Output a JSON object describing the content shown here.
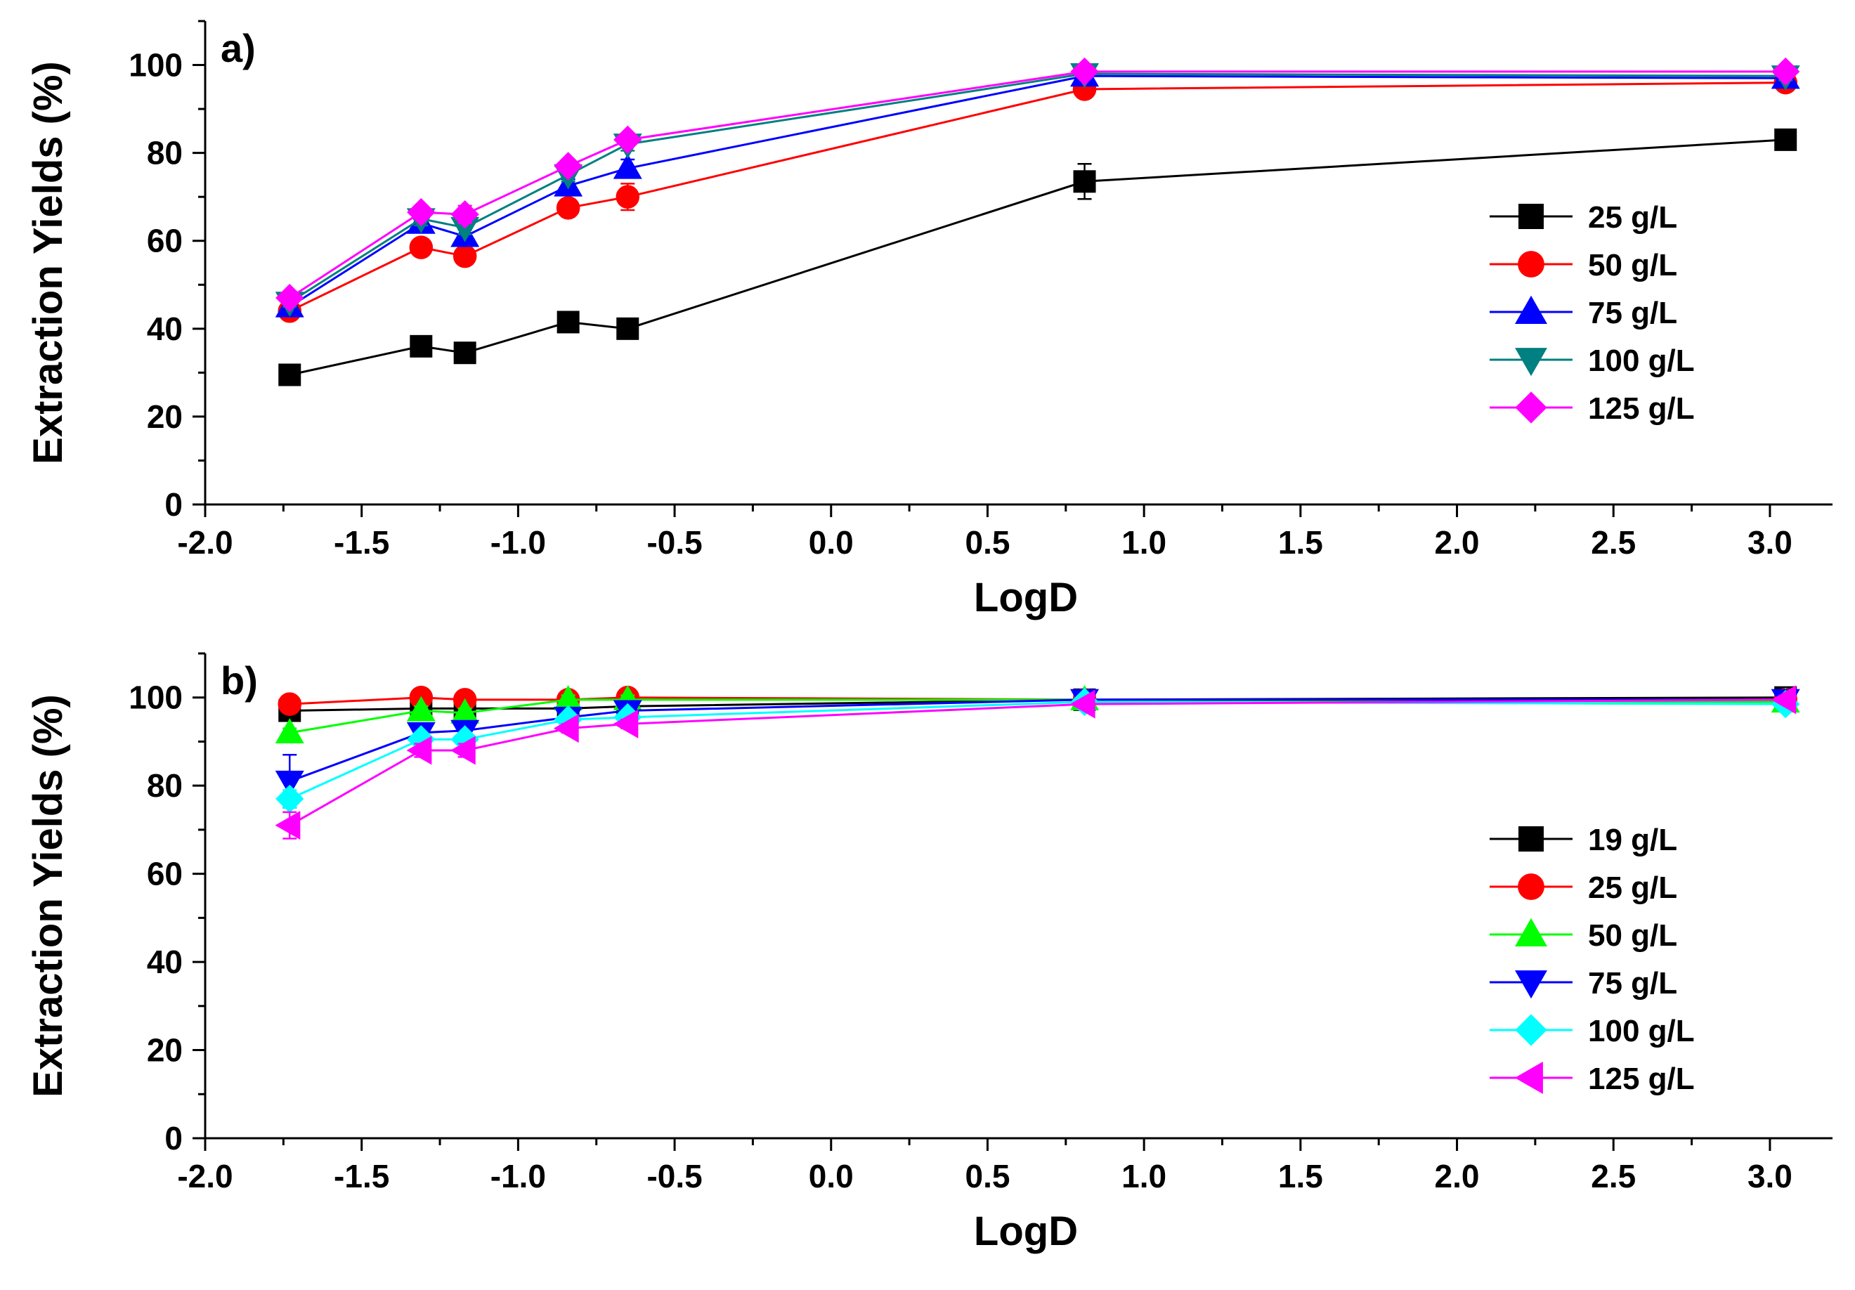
{
  "chart_data": [
    {
      "type": "line",
      "panel_label": "a)",
      "xlabel": "LogD",
      "ylabel": "Extraction Yields (%)",
      "xlim": [
        -2.0,
        3.2
      ],
      "ylim": [
        0,
        110
      ],
      "xticks": [
        "-2.0",
        "-1.5",
        "-1.0",
        "-0.5",
        "0.0",
        "0.5",
        "1.0",
        "1.5",
        "2.0",
        "2.5",
        "3.0"
      ],
      "yticks": [
        "0",
        "20",
        "40",
        "60",
        "80",
        "100"
      ],
      "legend_position": "center-right",
      "grid": false,
      "x": [
        -1.73,
        -1.31,
        -1.17,
        -0.84,
        -0.65,
        0.81,
        3.05
      ],
      "series": [
        {
          "name": "25 g/L",
          "color": "#000000",
          "marker": "square",
          "values": [
            29.5,
            36,
            34.5,
            41.5,
            40,
            73.5,
            83
          ],
          "errors": [
            1,
            1,
            1,
            1,
            1,
            4,
            1
          ]
        },
        {
          "name": "50 g/L",
          "color": "#ff0000",
          "marker": "circle",
          "values": [
            44,
            58.5,
            56.5,
            67.5,
            70,
            94.5,
            96
          ],
          "errors": [
            1,
            1.5,
            1.5,
            2,
            3,
            1,
            1
          ]
        },
        {
          "name": "75 g/L",
          "color": "#0000ff",
          "marker": "triangle-up",
          "values": [
            45,
            64,
            61,
            72.5,
            76.5,
            97.5,
            97
          ],
          "errors": [
            1,
            1.5,
            1.5,
            1.5,
            2,
            1,
            1
          ]
        },
        {
          "name": "100 g/L",
          "color": "#008080",
          "marker": "triangle-down",
          "values": [
            46,
            65,
            63,
            75,
            82,
            98,
            97.5
          ],
          "errors": [
            1,
            1.5,
            1.5,
            1.5,
            1.5,
            1,
            1
          ]
        },
        {
          "name": "125 g/L",
          "color": "#ff00ff",
          "marker": "diamond",
          "values": [
            47,
            66.5,
            66,
            77,
            83,
            98.5,
            98.5
          ],
          "errors": [
            1,
            1.5,
            2,
            1.5,
            1.5,
            1,
            1
          ]
        }
      ]
    },
    {
      "type": "line",
      "panel_label": "b)",
      "xlabel": "LogD",
      "ylabel": "Extraction Yields (%)",
      "xlim": [
        -2.0,
        3.2
      ],
      "ylim": [
        0,
        110
      ],
      "xticks": [
        "-2.0",
        "-1.5",
        "-1.0",
        "-0.5",
        "0.0",
        "0.5",
        "1.0",
        "1.5",
        "2.0",
        "2.5",
        "3.0"
      ],
      "yticks": [
        "0",
        "20",
        "40",
        "60",
        "80",
        "100"
      ],
      "legend_position": "center-right",
      "grid": false,
      "x": [
        -1.73,
        -1.31,
        -1.17,
        -0.84,
        -0.65,
        0.81,
        3.05
      ],
      "series": [
        {
          "name": "19 g/L",
          "color": "#000000",
          "marker": "square",
          "values": [
            97,
            97.5,
            97.5,
            97.5,
            98,
            99.5,
            100
          ],
          "errors": [
            0.5,
            0.5,
            0.5,
            0.5,
            0.5,
            0.5,
            0.5
          ]
        },
        {
          "name": "25 g/L",
          "color": "#ff0000",
          "marker": "circle",
          "values": [
            98.5,
            100,
            99.5,
            99.5,
            100,
            99.5,
            99.5
          ],
          "errors": [
            0.5,
            0.5,
            0.5,
            0.5,
            0.5,
            0.5,
            0.5
          ]
        },
        {
          "name": "50 g/L",
          "color": "#00ff00",
          "marker": "triangle-up",
          "values": [
            92,
            97,
            96.5,
            99.5,
            99.5,
            99.5,
            99
          ],
          "errors": [
            1,
            1,
            1,
            1,
            1,
            0.5,
            0.5
          ]
        },
        {
          "name": "75 g/L",
          "color": "#0000ff",
          "marker": "triangle-down",
          "values": [
            81,
            92,
            92.5,
            95.5,
            97,
            99.5,
            99.5
          ],
          "errors": [
            6,
            1.5,
            1.5,
            1,
            1,
            0.5,
            0.5
          ]
        },
        {
          "name": "100 g/L",
          "color": "#00ffff",
          "marker": "diamond",
          "values": [
            77,
            90.5,
            90.5,
            95,
            95.5,
            99,
            98.5
          ],
          "errors": [
            2,
            1.5,
            1.5,
            1,
            1,
            0.5,
            0.5
          ]
        },
        {
          "name": "125 g/L",
          "color": "#ff00ff",
          "marker": "triangle-left",
          "values": [
            71,
            88,
            88,
            93,
            94,
            98.5,
            99.5
          ],
          "errors": [
            3,
            1.5,
            1.5,
            1,
            1,
            0.5,
            0.5
          ]
        }
      ]
    }
  ]
}
